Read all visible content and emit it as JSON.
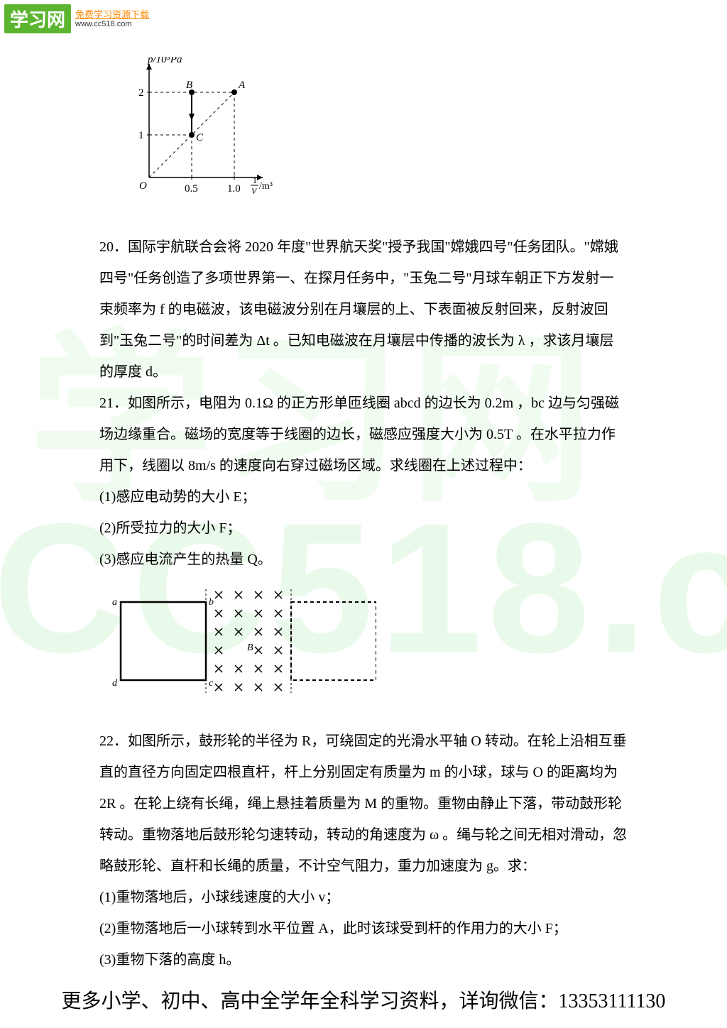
{
  "logo": {
    "badge": "学习网",
    "sub": "免费学习资源下载",
    "url": "www.cc518.com"
  },
  "watermark": {
    "text1": "学习网",
    "text2": "CC518.com"
  },
  "fig1": {
    "ylabel": "p/10⁵Pa",
    "xlabel_prefix": "1",
    "xlabel_denom": "V",
    "xlabel_unit": "/m³",
    "yticks": [
      "1",
      "2"
    ],
    "xticks": [
      "0.5",
      "1.0"
    ],
    "origin": "O",
    "ptA": "A",
    "ptB": "B",
    "ptC": "C",
    "axis_color": "#000000",
    "dash_color": "#000000",
    "point_fill": "#000000"
  },
  "q20": {
    "text": "20．国际宇航联合会将 2020 年度\"世界航天奖\"授予我国\"嫦娥四号\"任务团队。\"嫦娥四号\"任务创造了多项世界第一、在探月任务中，\"玉兔二号\"月球车朝正下方发射一束频率为 f 的电磁波，该电磁波分别在月壤层的上、下表面被反射回来，反射波回到\"玉兔二号\"的时间差为 Δt 。已知电磁波在月壤层中传播的波长为 λ ，求该月壤层的厚度 d。"
  },
  "q21": {
    "text": "21．如图所示，电阻为 0.1Ω 的正方形单匝线圈 abcd 的边长为 0.2m ，bc 边与匀强磁场边缘重合。磁场的宽度等于线圈的边长，磁感应强度大小为 0.5T 。在水平拉力作用下，线圈以 8m/s 的速度向右穿过磁场区域。求线圈在上述过程中：",
    "sub1": "(1)感应电动势的大小 E；",
    "sub2": "(2)所受拉力的大小 F；",
    "sub3": "(3)感应电流产生的热量 Q。"
  },
  "fig2": {
    "a": "a",
    "b": "b",
    "c": "c",
    "d": "d",
    "B": "B",
    "cross_color": "#000000",
    "line_color": "#000000"
  },
  "q22": {
    "text": "22．如图所示，鼓形轮的半径为 R，可绕固定的光滑水平轴 O 转动。在轮上沿相互垂直的直径方向固定四根直杆，杆上分别固定有质量为 m 的小球，球与 O 的距离均为 2R 。在轮上绕有长绳，绳上悬挂着质量为 M 的重物。重物由静止下落，带动鼓形轮转动。重物落地后鼓形轮匀速转动，转动的角速度为 ω 。绳与轮之间无相对滑动，忽略鼓形轮、直杆和长绳的质量，不计空气阻力，重力加速度为 g。求：",
    "sub1": "(1)重物落地后，小球线速度的大小 v；",
    "sub2": "(2)重物落地后一小球转到水平位置 A，此时该球受到杆的作用力的大小 F；",
    "sub3": "(3)重物下落的高度 h。"
  },
  "footer": "更多小学、初中、高中全学年全科学习资料，详询微信：13353111130"
}
